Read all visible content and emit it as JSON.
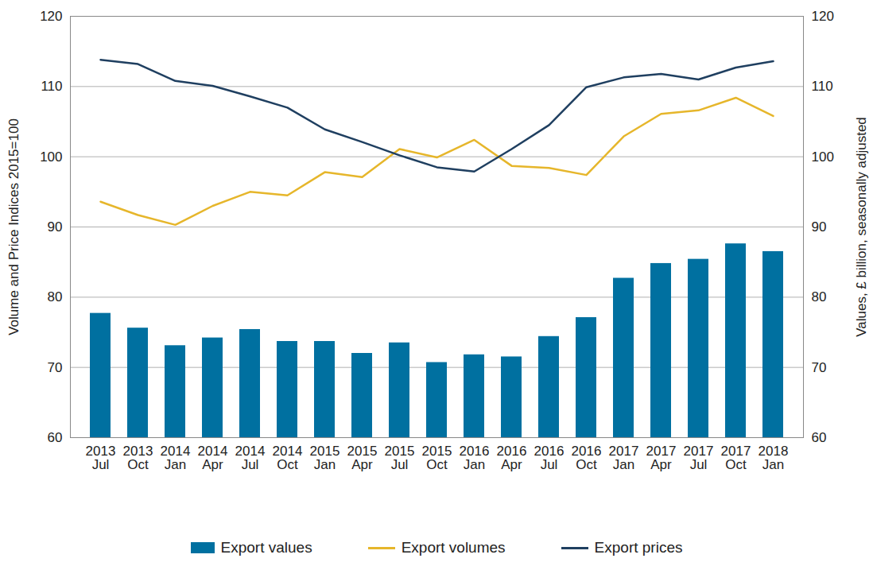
{
  "chart_data": {
    "type": "bar",
    "categories": [
      "2013\nJul",
      "2013\nOct",
      "2014\nJan",
      "2014\nApr",
      "2014\nJul",
      "2014\nOct",
      "2015\nJan",
      "2015\nApr",
      "2015\nJul",
      "2015\nOct",
      "2016\nJan",
      "2016\nApr",
      "2016\nJul",
      "2016\nOct",
      "2017\nJan",
      "2017\nApr",
      "2017\nJul",
      "2017\nOct",
      "2018\nJan"
    ],
    "y_label": "Volume and Price Indices 2015=100",
    "y2_label": "Values, £ billion, seasonally adjusted",
    "ylim": [
      60,
      120
    ],
    "yticks": [
      60,
      70,
      80,
      90,
      100,
      110,
      120
    ],
    "y2lim": [
      60,
      120
    ],
    "y2ticks": [
      60,
      70,
      80,
      90,
      100,
      110,
      120
    ],
    "grid": true,
    "legend": "bottom",
    "series": [
      {
        "name": "Export values",
        "type": "bar",
        "axis": "y2",
        "color": "#0070a0",
        "values": [
          77.7,
          75.6,
          73.1,
          74.2,
          75.4,
          73.7,
          73.7,
          72.0,
          73.5,
          70.7,
          71.8,
          71.5,
          74.4,
          77.1,
          82.7,
          84.8,
          85.4,
          87.6,
          86.5
        ]
      },
      {
        "name": "Export volumes",
        "type": "line",
        "color": "#e6b62b",
        "values": [
          93.6,
          91.7,
          90.3,
          93.0,
          95.0,
          94.5,
          97.8,
          97.1,
          101.1,
          99.9,
          102.4,
          98.7,
          98.4,
          97.4,
          102.9,
          106.1,
          106.6,
          108.4,
          105.8
        ]
      },
      {
        "name": "Export prices",
        "type": "line",
        "color": "#1f3f60",
        "values": [
          113.8,
          113.2,
          110.8,
          110.1,
          108.6,
          107.0,
          103.9,
          102.1,
          100.2,
          98.5,
          97.9,
          101.1,
          104.5,
          109.9,
          111.3,
          111.8,
          111.0,
          112.7,
          113.6
        ]
      }
    ]
  }
}
